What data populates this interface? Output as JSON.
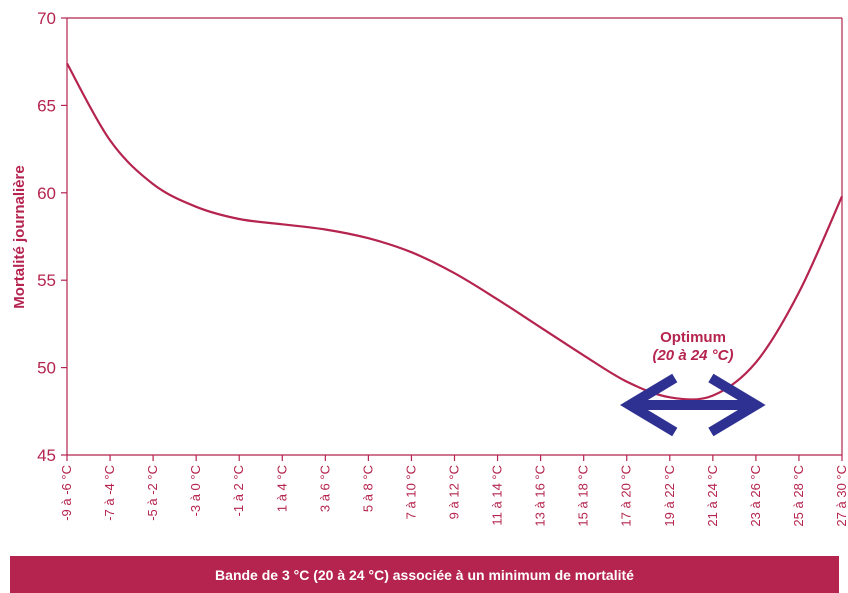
{
  "chart_data": {
    "type": "line",
    "title": "",
    "xlabel": "",
    "ylabel": "Mortalité journalière",
    "ylim": [
      45,
      70
    ],
    "yticks": [
      45,
      50,
      55,
      60,
      65,
      70
    ],
    "grid": false,
    "categories": [
      "-9 à -6 °C",
      "-7 à -4 °C",
      "-5 à -2 °C",
      "-3 à 0 °C",
      "-1 à 2 °C",
      "1 à 4 °C",
      "3 à 6 °C",
      "5 à 8 °C",
      "7 à 10 °C",
      "9 à 12 °C",
      "11 à 14 °C",
      "13 à 16 °C",
      "15 à 18 °C",
      "17 à 20 °C",
      "19 à 22 °C",
      "21 à 24 °C",
      "23 à 26 °C",
      "25 à 28 °C",
      "27 à 30 °C"
    ],
    "series": [
      {
        "values": [
          67.4,
          63.0,
          60.5,
          59.2,
          58.5,
          58.2,
          57.9,
          57.4,
          56.6,
          55.4,
          53.9,
          52.3,
          50.7,
          49.2,
          48.3,
          48.4,
          50.3,
          54.3,
          59.8
        ]
      }
    ],
    "annotation": {
      "title": "Optimum",
      "subtitle": "(20 à 24 °C)",
      "range": [
        "19 à 22 °C",
        "23 à 26 °C"
      ]
    },
    "colors": {
      "line": "#b5244e",
      "axis": "#b5244e",
      "arrow": "#2e3192",
      "banner": "#b5244e"
    }
  },
  "footer": {
    "banner_text": "Bande de 3 °C (20 à 24 °C) associée à un minimum de mortalité"
  }
}
